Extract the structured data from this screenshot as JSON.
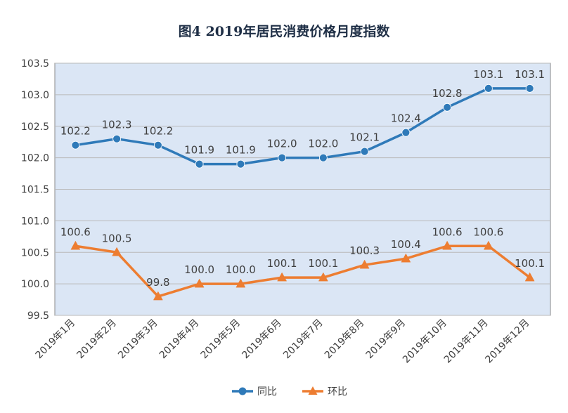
{
  "chart_data": {
    "type": "line",
    "title": "图4  2019年居民消费价格月度指数",
    "xlabel": "",
    "ylabel": "",
    "ylim": [
      99.5,
      103.5
    ],
    "yticks": [
      "103.5",
      "103.0",
      "102.5",
      "102.0",
      "101.5",
      "101.0",
      "100.5",
      "100.0",
      "99.5"
    ],
    "categories": [
      "2019年1月",
      "2019年2月",
      "2019年3月",
      "2019年4月",
      "2019年5月",
      "2019年6月",
      "2019年7月",
      "2019年8月",
      "2019年9月",
      "2019年10月",
      "2019年11月",
      "2019年12月"
    ],
    "series": [
      {
        "name": "同比",
        "values": [
          102.2,
          102.3,
          102.2,
          101.9,
          101.9,
          102.0,
          102.0,
          102.1,
          102.4,
          102.8,
          103.1,
          103.1
        ],
        "labels": [
          "102.2",
          "102.3",
          "102.2",
          "101.9",
          "101.9",
          "102.0",
          "102.0",
          "102.1",
          "102.4",
          "102.8",
          "103.1",
          "103.1"
        ],
        "color": "#2f7ab9",
        "marker": "circle"
      },
      {
        "name": "环比",
        "values": [
          100.6,
          100.5,
          99.8,
          100.0,
          100.0,
          100.1,
          100.1,
          100.3,
          100.4,
          100.6,
          100.6,
          100.1
        ],
        "labels": [
          "100.6",
          "100.5",
          "99.8",
          "100.0",
          "100.0",
          "100.1",
          "100.1",
          "100.3",
          "100.4",
          "100.6",
          "100.6",
          "100.1"
        ],
        "color": "#ed7d31",
        "marker": "triangle"
      }
    ],
    "grid": true,
    "plot_background": "#dbe6f5",
    "legend_position": "bottom"
  }
}
